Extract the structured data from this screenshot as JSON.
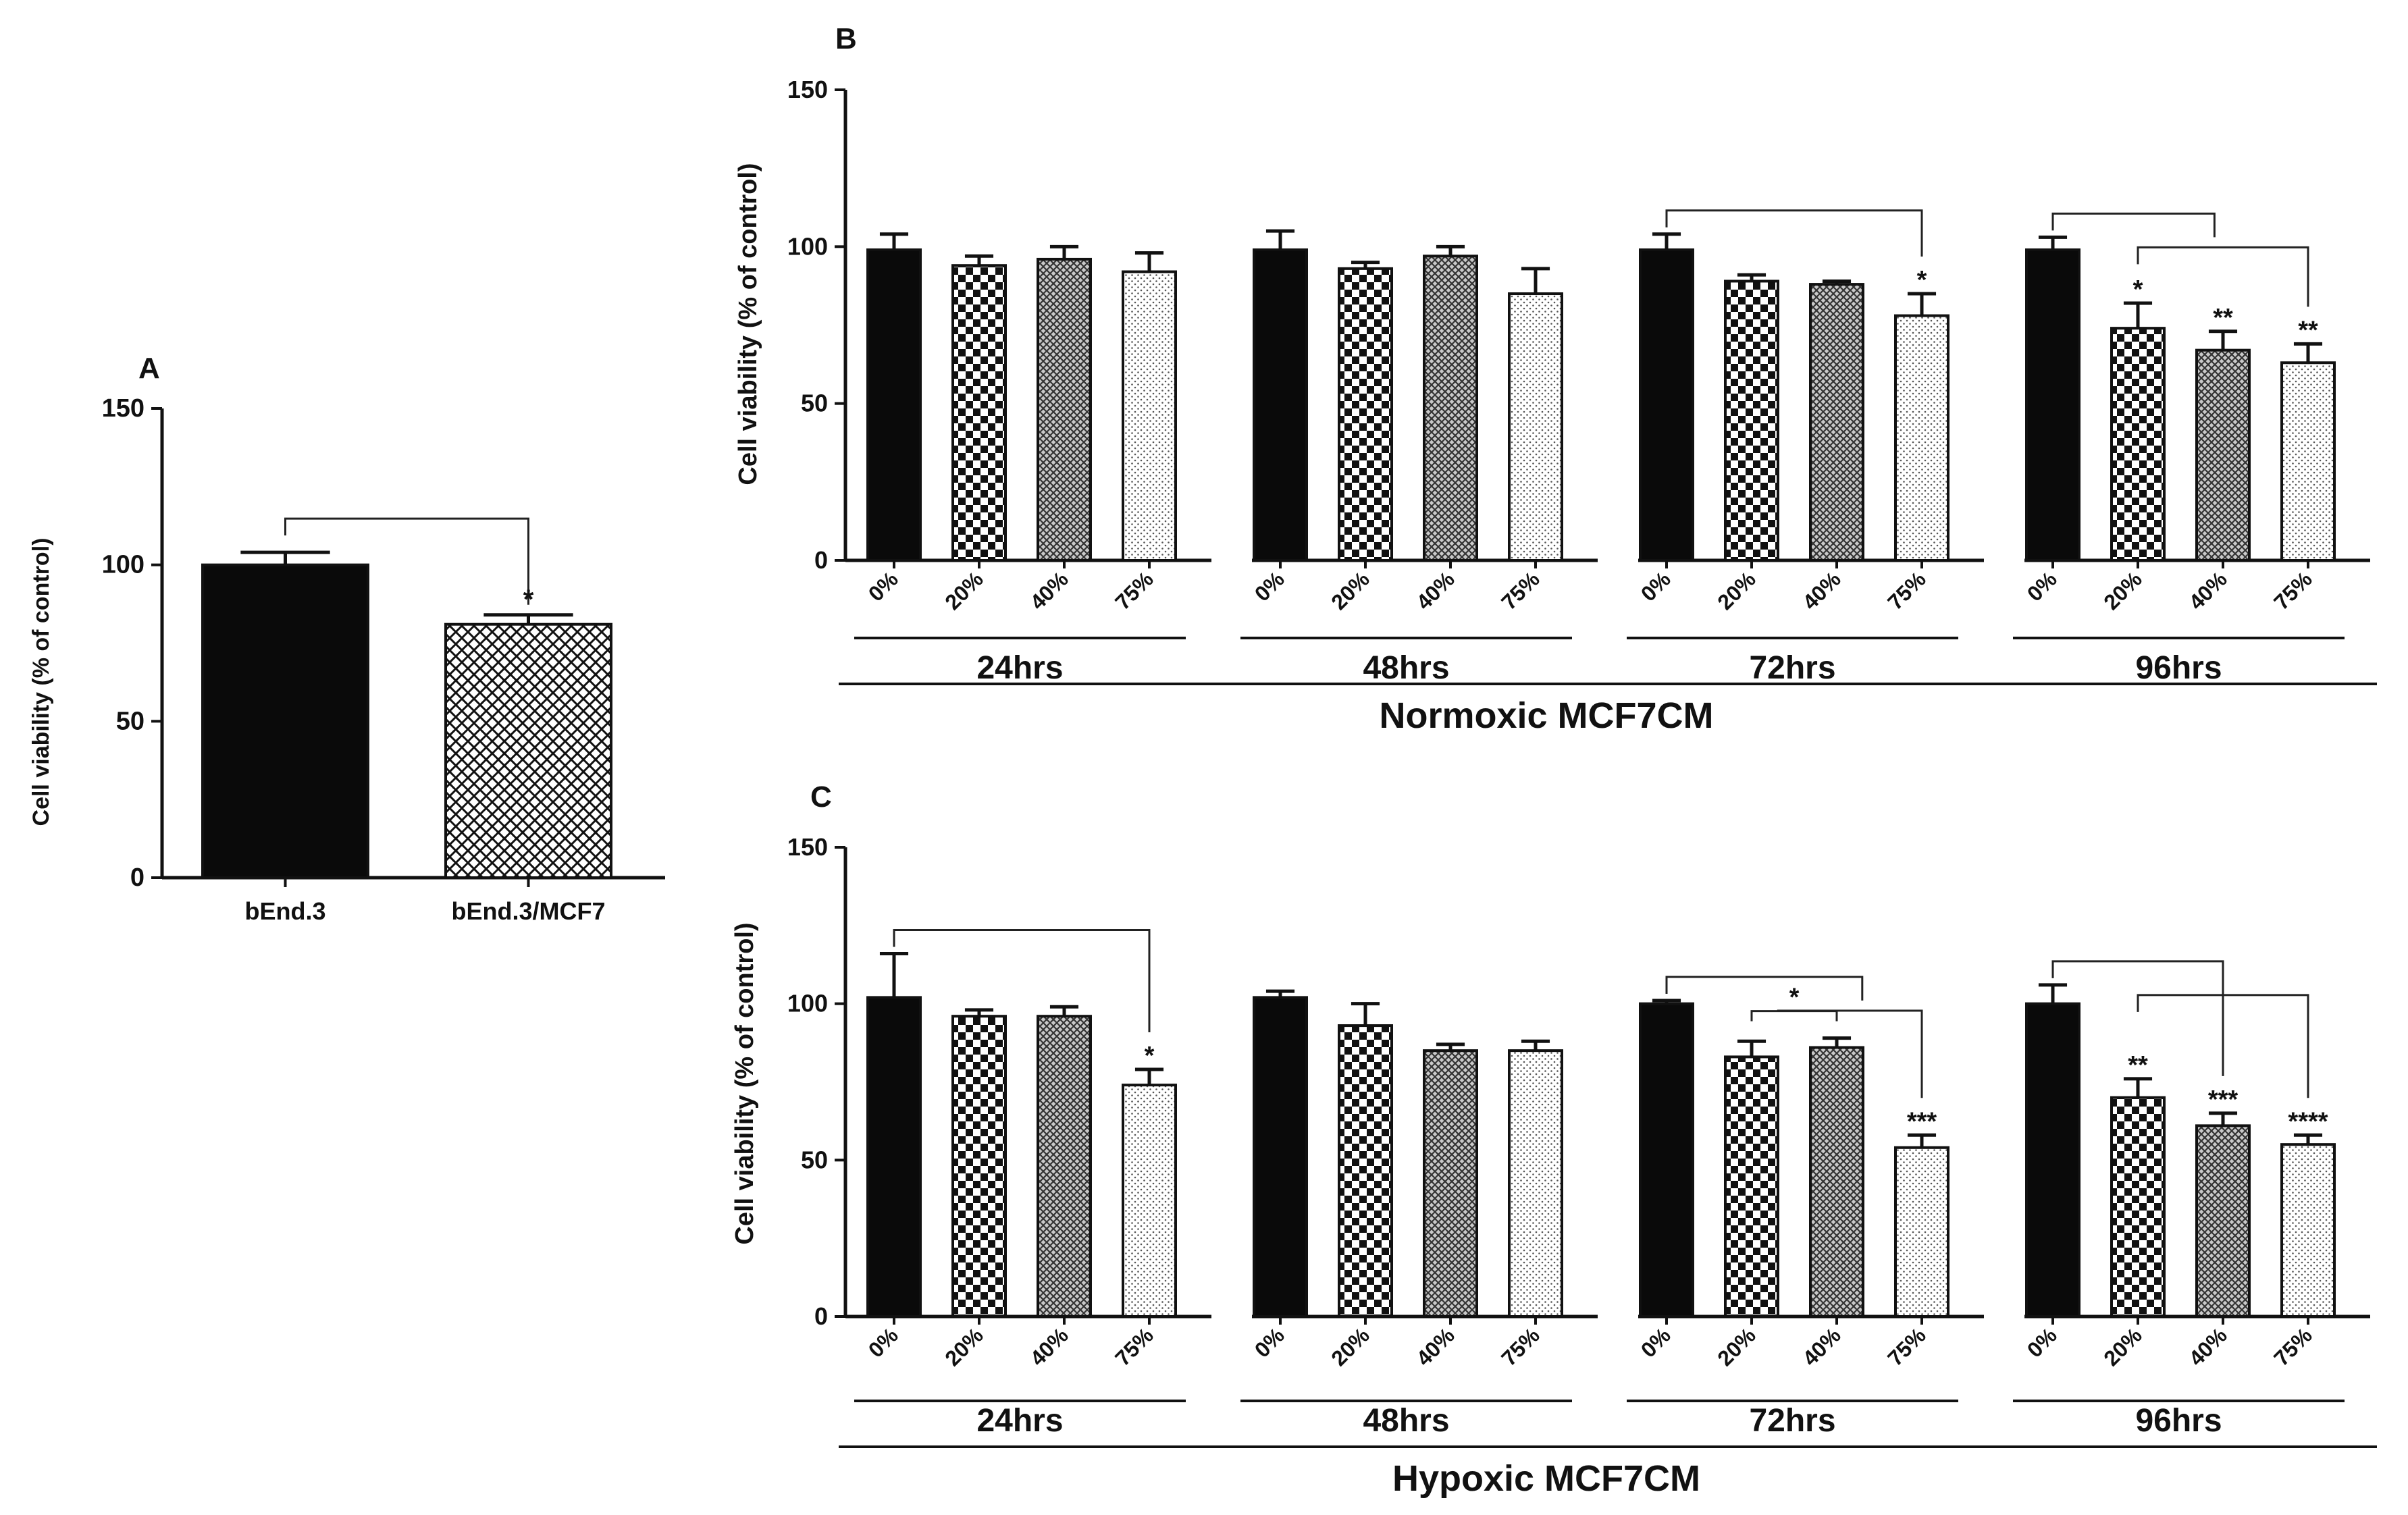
{
  "chart_data": [
    {
      "id": "A",
      "panel_label": "A",
      "type": "bar",
      "ylabel": "Cell viability (% of control)",
      "ylim": [
        0,
        150
      ],
      "yticks": [
        0,
        50,
        100,
        150
      ],
      "categories": [
        "bEnd.3",
        "bEnd.3/MCF7"
      ],
      "values": [
        100,
        81
      ],
      "errors": [
        4,
        3
      ],
      "patterns": [
        "solid",
        "diamond"
      ],
      "significance": [
        {
          "from": 0,
          "to": 1,
          "label": "*"
        }
      ]
    },
    {
      "id": "B",
      "panel_label": "B",
      "type": "bar",
      "ylabel": "Cell viability (% of control)",
      "ylim": [
        0,
        150
      ],
      "yticks": [
        0,
        50,
        100,
        150
      ],
      "xlabel": "Normoxic MCF7CM",
      "sub_categories": [
        "0%",
        "20%",
        "40%",
        "75%"
      ],
      "groups": [
        {
          "label": "24hrs",
          "values": [
            99,
            94,
            96,
            92
          ],
          "errors": [
            5,
            3,
            4,
            6
          ],
          "stars": [
            "",
            "",
            "",
            ""
          ]
        },
        {
          "label": "48hrs",
          "values": [
            99,
            93,
            97,
            85
          ],
          "errors": [
            6,
            2,
            3,
            8
          ],
          "stars": [
            "",
            "",
            "",
            ""
          ]
        },
        {
          "label": "72hrs",
          "values": [
            99,
            89,
            88,
            78
          ],
          "errors": [
            5,
            2,
            1,
            7
          ],
          "stars": [
            "",
            "",
            "",
            "*"
          ]
        },
        {
          "label": "96hrs",
          "values": [
            99,
            74,
            67,
            63
          ],
          "errors": [
            4,
            8,
            6,
            6
          ],
          "stars": [
            "",
            "*",
            "**",
            "**"
          ]
        }
      ],
      "brackets": [
        {
          "group": 2,
          "from": 0,
          "to": 3
        },
        {
          "group": 3,
          "from": 0,
          "to": 1.9
        },
        {
          "group": 3,
          "from": 1,
          "to": 3
        }
      ]
    },
    {
      "id": "C",
      "panel_label": "C",
      "type": "bar",
      "ylabel": "Cell viability (% of control)",
      "ylim": [
        0,
        150
      ],
      "yticks": [
        0,
        50,
        100,
        150
      ],
      "xlabel": "Hypoxic MCF7CM",
      "sub_categories": [
        "0%",
        "20%",
        "40%",
        "75%"
      ],
      "groups": [
        {
          "label": "24hrs",
          "values": [
            102,
            96,
            96,
            74
          ],
          "errors": [
            14,
            2,
            3,
            5
          ],
          "stars": [
            "",
            "",
            "",
            "*"
          ]
        },
        {
          "label": "48hrs",
          "values": [
            102,
            93,
            85,
            85
          ],
          "errors": [
            2,
            7,
            2,
            3
          ],
          "stars": [
            "",
            "",
            "",
            ""
          ]
        },
        {
          "label": "72hrs",
          "values": [
            100,
            83,
            86,
            54
          ],
          "errors": [
            1,
            5,
            3,
            4
          ],
          "stars": [
            "",
            "",
            "",
            "***"
          ]
        },
        {
          "label": "96hrs",
          "values": [
            100,
            70,
            61,
            55
          ],
          "errors": [
            6,
            6,
            4,
            3
          ],
          "stars": [
            "",
            "**",
            "***",
            "****"
          ]
        }
      ],
      "brackets": [
        {
          "group": 0,
          "from": 0,
          "to": 3
        },
        {
          "group": 2,
          "from": 0,
          "to": 2.3
        },
        {
          "group": 2,
          "from": 1.3,
          "to": 3
        },
        {
          "group": 2,
          "from": 1,
          "to": 2,
          "label": "*"
        },
        {
          "group": 3,
          "from": 0,
          "to": 2
        },
        {
          "group": 3,
          "from": 1,
          "to": 3
        }
      ]
    }
  ]
}
